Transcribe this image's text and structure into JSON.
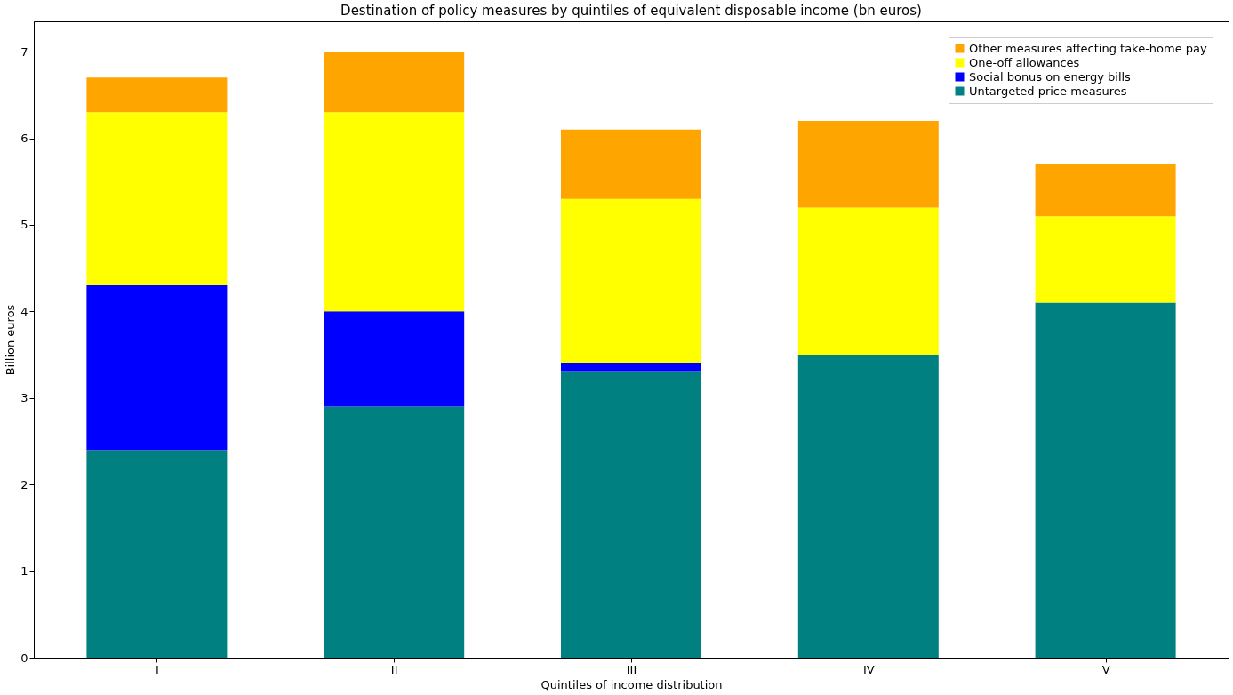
{
  "chart_data": {
    "type": "bar",
    "stacked": true,
    "title": "Destination of policy measures by quintiles of equivalent disposable income (bn euros)",
    "xlabel": "Quintiles of income distribution",
    "ylabel": "Billion euros",
    "categories": [
      "I",
      "II",
      "III",
      "IV",
      "V"
    ],
    "series": [
      {
        "name": "Untargeted price measures",
        "color": "#008080",
        "values": [
          2.4,
          2.9,
          3.3,
          3.5,
          4.1
        ]
      },
      {
        "name": "Social bonus on energy bills",
        "color": "#0000ff",
        "values": [
          1.9,
          1.1,
          0.1,
          0,
          0
        ]
      },
      {
        "name": "One-off allowances",
        "color": "#ffff00",
        "values": [
          2.0,
          2.3,
          1.9,
          1.7,
          1.0
        ]
      },
      {
        "name": "Other measures affecting take-home pay",
        "color": "#ffa500",
        "values": [
          0.4,
          0.7,
          0.8,
          1.0,
          0.6
        ]
      }
    ],
    "ylim": [
      0,
      7.35
    ],
    "yticks": [
      0,
      1,
      2,
      3,
      4,
      5,
      6,
      7
    ],
    "grid": false,
    "legend": "top right"
  }
}
